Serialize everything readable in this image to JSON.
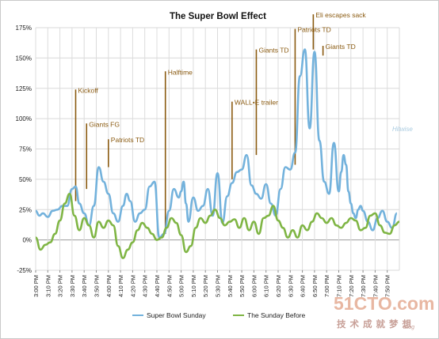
{
  "chart_data": {
    "type": "line",
    "title": "The Super Bowl Effect",
    "ylim": [
      -25,
      175
    ],
    "yticks": [
      -25,
      0,
      25,
      50,
      75,
      100,
      125,
      150,
      175
    ],
    "ytick_labels": [
      "-25%",
      "0%",
      "25%",
      "50%",
      "75%",
      "100%",
      "125%",
      "150%",
      "175%"
    ],
    "xlim": [
      0,
      300
    ],
    "xtick_labels": [
      "3:00 PM",
      "3:10 PM",
      "3:20 PM",
      "3:30 PM",
      "3:40 PM",
      "3:50 PM",
      "4:00 PM",
      "4:10 PM",
      "4:20 PM",
      "4:30 PM",
      "4:40 PM",
      "4:50 PM",
      "5:00 PM",
      "5:10 PM",
      "5:20 PM",
      "5:30 PM",
      "5:40 PM",
      "5:50 PM",
      "6:00 PM",
      "6:10 PM",
      "6:20 PM",
      "6:30 PM",
      "6:40 PM",
      "6:50 PM",
      "7:00 PM",
      "7:10 PM",
      "7:20 PM",
      "7:30 PM",
      "7:40 PM",
      "7:50 PM"
    ],
    "grid": true,
    "legend_position": "bottom",
    "series": [
      {
        "name": "Super Bowl Sunday",
        "color": "#73b2dc",
        "x": [
          0,
          3,
          6,
          10,
          14,
          18,
          22,
          26,
          30,
          33,
          36,
          40,
          44,
          48,
          52,
          56,
          60,
          64,
          68,
          72,
          75,
          78,
          82,
          86,
          90,
          94,
          98,
          102,
          106,
          110,
          114,
          118,
          120,
          122,
          124,
          126,
          130,
          134,
          138,
          142,
          146,
          150,
          154,
          158,
          162,
          166,
          170,
          174,
          178,
          182,
          186,
          190,
          194,
          198,
          202,
          206,
          210,
          214,
          218,
          222,
          226,
          230,
          234,
          238,
          242,
          246,
          250,
          252,
          254,
          256,
          258,
          260,
          262,
          264,
          266,
          268,
          270,
          274,
          278,
          282,
          286,
          290,
          294,
          298
        ],
        "y": [
          24,
          20,
          22,
          19,
          24,
          25,
          28,
          28,
          42,
          44,
          30,
          22,
          12,
          28,
          60,
          48,
          38,
          22,
          15,
          28,
          38,
          32,
          15,
          22,
          25,
          44,
          48,
          2,
          5,
          24,
          42,
          35,
          40,
          48,
          30,
          15,
          35,
          24,
          28,
          42,
          20,
          55,
          14,
          36,
          47,
          56,
          58,
          70,
          45,
          38,
          34,
          46,
          30,
          20,
          42,
          60,
          58,
          72,
          135,
          157,
          92,
          155,
          82,
          48,
          38,
          80,
          40,
          56,
          70,
          62,
          40,
          30,
          22,
          18,
          25,
          28,
          24,
          15,
          8,
          18,
          24,
          15,
          10,
          22
        ]
      },
      {
        "name": "The Sunday Before",
        "color": "#7fb544",
        "x": [
          0,
          4,
          8,
          12,
          16,
          20,
          24,
          28,
          32,
          36,
          40,
          44,
          48,
          52,
          56,
          60,
          64,
          68,
          72,
          76,
          80,
          84,
          88,
          92,
          96,
          100,
          104,
          108,
          112,
          116,
          120,
          124,
          128,
          132,
          136,
          140,
          144,
          148,
          152,
          156,
          160,
          164,
          168,
          172,
          176,
          180,
          184,
          188,
          192,
          196,
          200,
          204,
          208,
          212,
          216,
          220,
          224,
          228,
          232,
          236,
          240,
          244,
          248,
          252,
          256,
          260,
          264,
          268,
          272,
          276,
          280,
          284,
          288,
          292,
          296,
          300
        ],
        "y": [
          2,
          -8,
          -4,
          -2,
          5,
          16,
          30,
          38,
          20,
          8,
          18,
          12,
          2,
          15,
          10,
          16,
          12,
          -5,
          -15,
          -8,
          -2,
          8,
          14,
          10,
          5,
          0,
          2,
          10,
          18,
          14,
          4,
          -10,
          -5,
          10,
          18,
          14,
          20,
          25,
          18,
          12,
          15,
          17,
          10,
          18,
          8,
          15,
          5,
          18,
          20,
          28,
          16,
          10,
          2,
          8,
          2,
          12,
          8,
          15,
          22,
          18,
          14,
          18,
          12,
          10,
          14,
          18,
          16,
          8,
          10,
          20,
          22,
          12,
          6,
          5,
          12,
          15
        ]
      }
    ],
    "annotations": [
      {
        "label": "Kickoff",
        "x": 33,
        "y_top": 124,
        "y_bottom": 32
      },
      {
        "label": "Giants FG",
        "x": 42,
        "y_top": 96,
        "y_bottom": 42
      },
      {
        "label": "Patriots TD",
        "x": 60,
        "y_top": 83,
        "y_bottom": 60
      },
      {
        "label": "Halftime",
        "x": 107,
        "y_top": 139,
        "y_bottom": 5
      },
      {
        "label": "WALL•E trailer",
        "x": 162,
        "y_top": 114,
        "y_bottom": 50
      },
      {
        "label": "Giants TD",
        "x": 182,
        "y_top": 157,
        "y_bottom": 70
      },
      {
        "label": "Patriots TD",
        "x": 214,
        "y_top": 174,
        "y_bottom": 62
      },
      {
        "label": "Eli escapes sack",
        "x": 229,
        "y_top": 186,
        "y_bottom": 157
      },
      {
        "label": "Giants TD",
        "x": 237,
        "y_top": 160,
        "y_bottom": 152
      }
    ]
  },
  "watermark": {
    "main": "51CTO.com",
    "sub": "技术成就梦想",
    "tag": "Blog",
    "hitwise": "Hitwise"
  }
}
